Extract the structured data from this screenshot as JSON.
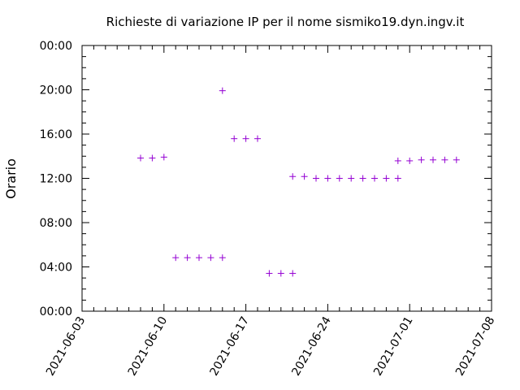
{
  "chart_data": {
    "type": "scatter",
    "title": "Richieste di variazione IP per il nome sismiko19.dyn.ingv.it",
    "xlabel": "",
    "ylabel": "Orario",
    "marker": "+",
    "marker_color": "#9400d3",
    "grid": false,
    "x_ticks": [
      "2021-06-03",
      "2021-06-10",
      "2021-06-17",
      "2021-06-24",
      "2021-07-01",
      "2021-07-08"
    ],
    "xlim": [
      "2021-06-03",
      "2021-07-08"
    ],
    "y_ticks": [
      "00:00",
      "04:00",
      "08:00",
      "12:00",
      "16:00",
      "20:00",
      "00:00"
    ],
    "ylim": [
      "00:00",
      "24:00"
    ],
    "points": [
      {
        "date": "2021-06-08",
        "time": "13:50"
      },
      {
        "date": "2021-06-09",
        "time": "13:50"
      },
      {
        "date": "2021-06-10",
        "time": "13:55"
      },
      {
        "date": "2021-06-11",
        "time": "04:50"
      },
      {
        "date": "2021-06-12",
        "time": "04:50"
      },
      {
        "date": "2021-06-13",
        "time": "04:50"
      },
      {
        "date": "2021-06-14",
        "time": "04:50"
      },
      {
        "date": "2021-06-15",
        "time": "04:50"
      },
      {
        "date": "2021-06-15",
        "time": "19:55"
      },
      {
        "date": "2021-06-16",
        "time": "15:35"
      },
      {
        "date": "2021-06-17",
        "time": "15:35"
      },
      {
        "date": "2021-06-18",
        "time": "15:35"
      },
      {
        "date": "2021-06-19",
        "time": "03:25"
      },
      {
        "date": "2021-06-20",
        "time": "03:25"
      },
      {
        "date": "2021-06-21",
        "time": "03:25"
      },
      {
        "date": "2021-06-21",
        "time": "12:10"
      },
      {
        "date": "2021-06-22",
        "time": "12:10"
      },
      {
        "date": "2021-06-23",
        "time": "12:00"
      },
      {
        "date": "2021-06-24",
        "time": "12:00"
      },
      {
        "date": "2021-06-25",
        "time": "12:00"
      },
      {
        "date": "2021-06-26",
        "time": "12:00"
      },
      {
        "date": "2021-06-27",
        "time": "12:00"
      },
      {
        "date": "2021-06-28",
        "time": "12:00"
      },
      {
        "date": "2021-06-29",
        "time": "12:00"
      },
      {
        "date": "2021-06-30",
        "time": "12:00"
      },
      {
        "date": "2021-06-30",
        "time": "13:35"
      },
      {
        "date": "2021-07-01",
        "time": "13:35"
      },
      {
        "date": "2021-07-02",
        "time": "13:40"
      },
      {
        "date": "2021-07-03",
        "time": "13:40"
      },
      {
        "date": "2021-07-04",
        "time": "13:40"
      },
      {
        "date": "2021-07-05",
        "time": "13:40"
      }
    ]
  }
}
